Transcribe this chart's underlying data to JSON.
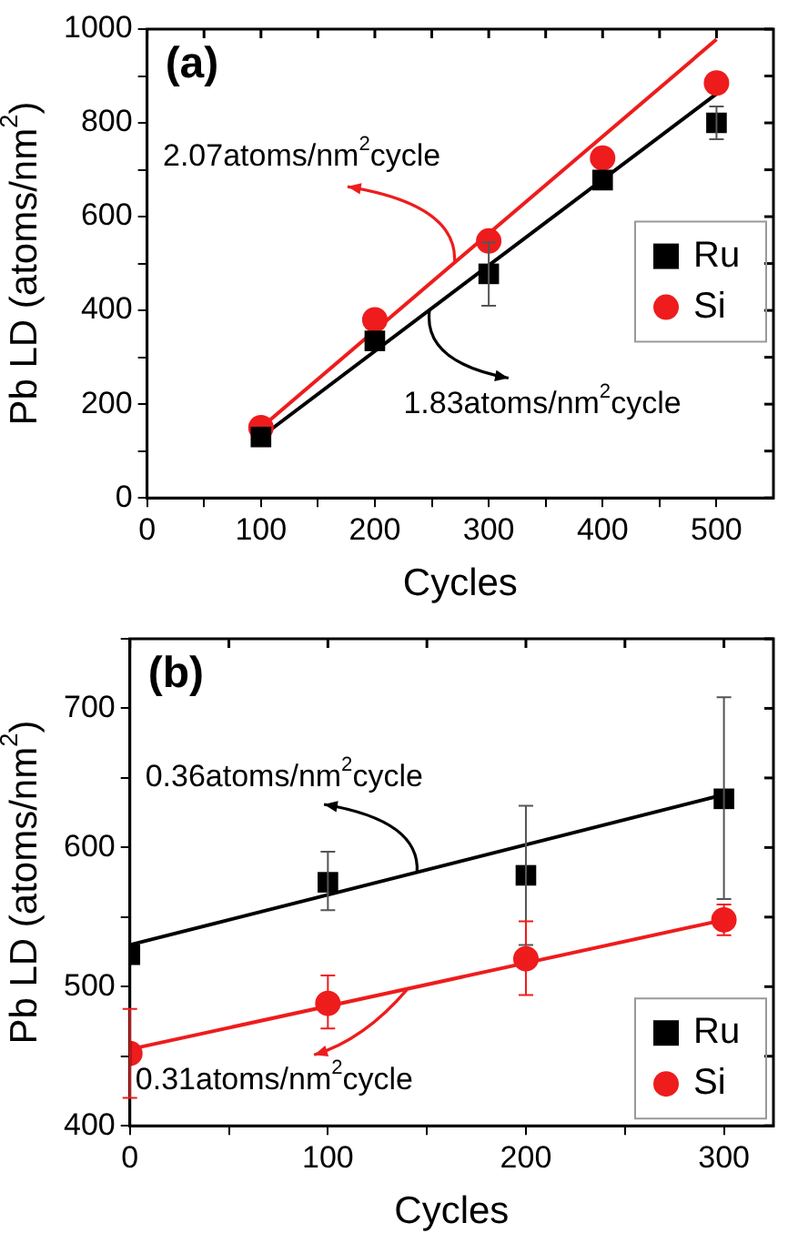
{
  "chart_data": [
    {
      "type": "scatter",
      "title": "(a)",
      "xlabel": "Cycles",
      "ylabel": "Pb LD (atoms/nm$^{2}$)",
      "xlim": [
        0,
        550
      ],
      "xticks": [
        0,
        {
          "value": 50,
          "label": null
        },
        100,
        {
          "value": 150,
          "label": null
        },
        200,
        {
          "value": 250,
          "label": null
        },
        300,
        {
          "value": 350,
          "label": null
        },
        400,
        {
          "value": 450,
          "label": null
        },
        500
      ],
      "ylim": [
        0,
        1000
      ],
      "yticks": [
        0,
        {
          "value": 100,
          "label": null
        },
        200,
        {
          "value": 300,
          "label": null
        },
        400,
        {
          "value": 500,
          "label": null
        },
        600,
        {
          "value": 700,
          "label": null
        },
        800,
        {
          "value": 900,
          "label": null
        },
        1000
      ],
      "grid": false,
      "legend": "right",
      "series": [
        {
          "name": "Ru",
          "color": "#000000",
          "marker": "square",
          "x": [
            100,
            200,
            300,
            400,
            500
          ],
          "values": [
            130,
            335,
            478,
            678,
            800
          ],
          "errors": [
            null,
            null,
            [
              410,
              545
            ],
            null,
            [
              765,
              835
            ]
          ]
        },
        {
          "name": "Si",
          "color": "#ee1c1c",
          "marker": "circle",
          "x": [
            100,
            200,
            300,
            400,
            500
          ],
          "values": [
            150,
            380,
            548,
            725,
            885
          ],
          "errors": [
            null,
            null,
            null,
            null,
            [
              865,
              905
            ]
          ]
        },
        {
          "type": "line",
          "color": "#000000",
          "x": [
            100,
            500
          ],
          "values": [
            130,
            862
          ]
        },
        {
          "type": "line",
          "color": "#ee1c1c",
          "x": [
            100,
            500
          ],
          "values": [
            150,
            978
          ]
        }
      ],
      "annotations": [
        {
          "text": "2.07atoms/nm$^{2}$cycle",
          "x": 270,
          "y": 502
        },
        {
          "text": "1.83atoms/nm$^{2}$cycle",
          "x": 248,
          "y": 401
        }
      ]
    },
    {
      "type": "scatter",
      "title": "(b)",
      "xlabel": "Cycles",
      "ylabel": "Pb LD (atoms/nm$^{2}$)",
      "xlim": [
        0,
        325
      ],
      "xticks": [
        0,
        {
          "value": 50,
          "label": null
        },
        100,
        {
          "value": 150,
          "label": null
        },
        200,
        {
          "value": 250,
          "label": null
        },
        300
      ],
      "ylim": [
        400,
        750
      ],
      "yticks": [
        400,
        {
          "value": 450,
          "label": null
        },
        500,
        {
          "value": 550,
          "label": null
        },
        600,
        {
          "value": 650,
          "label": null
        },
        700,
        {
          "value": 750,
          "label": null
        }
      ],
      "grid": false,
      "legend": "bottom right",
      "series": [
        {
          "name": "Ru",
          "color": "#000000",
          "marker": "square",
          "x": [
            0,
            100,
            200,
            300
          ],
          "values": [
            523,
            575,
            580,
            635
          ],
          "errors": [
            null,
            [
              555,
              597
            ],
            [
              530,
              630
            ],
            [
              563,
              708
            ]
          ]
        },
        {
          "name": "Si",
          "color": "#ee1c1c",
          "marker": "circle",
          "x": [
            0,
            100,
            200,
            300
          ],
          "values": [
            452,
            488,
            520,
            548
          ],
          "errors": [
            [
              420,
              484
            ],
            [
              470,
              508
            ],
            [
              494,
              547
            ],
            [
              537,
              559
            ]
          ]
        },
        {
          "type": "line",
          "color": "#000000",
          "x": [
            0,
            300
          ],
          "values": [
            530,
            638
          ]
        },
        {
          "type": "line",
          "color": "#ee1c1c",
          "x": [
            0,
            300
          ],
          "values": [
            455,
            548
          ]
        }
      ],
      "annotations": [
        {
          "text": "0.36atoms/nm$^{2}$cycle",
          "x": 145,
          "y": 582
        },
        {
          "text": "0.31atoms/nm$^{2}$cycle",
          "x": 140,
          "y": 498
        }
      ]
    }
  ]
}
